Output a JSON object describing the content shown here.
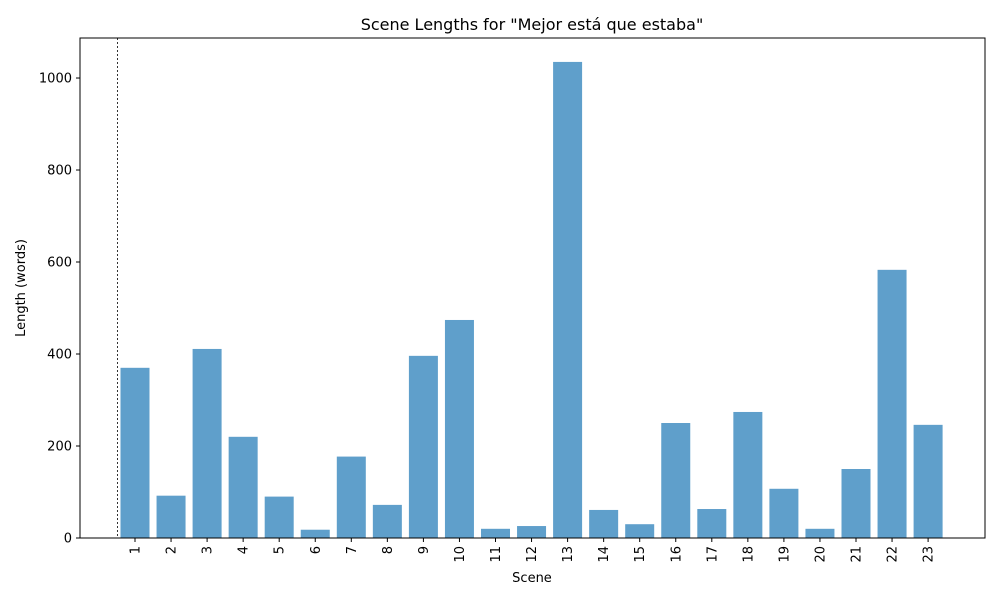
{
  "chart_data": {
    "type": "bar",
    "title": "Scene Lengths for \"Mejor está que estaba\"",
    "xlabel": "Scene",
    "ylabel": "Length (words)",
    "categories": [
      "1",
      "2",
      "3",
      "4",
      "5",
      "6",
      "7",
      "8",
      "9",
      "10",
      "11",
      "12",
      "13",
      "14",
      "15",
      "16",
      "17",
      "18",
      "19",
      "20",
      "21",
      "22",
      "23"
    ],
    "values": [
      370,
      92,
      411,
      220,
      90,
      18,
      177,
      72,
      396,
      474,
      20,
      26,
      1035,
      61,
      30,
      250,
      63,
      274,
      107,
      20,
      150,
      583,
      246
    ],
    "ylim": [
      0,
      1087
    ],
    "yticks": [
      0,
      200,
      400,
      600,
      800,
      1000
    ],
    "bar_color": "#5f9fcb",
    "grid": false,
    "annotations": [
      {
        "type": "vertical-dashed-line",
        "x_position": "before first scene"
      }
    ]
  }
}
